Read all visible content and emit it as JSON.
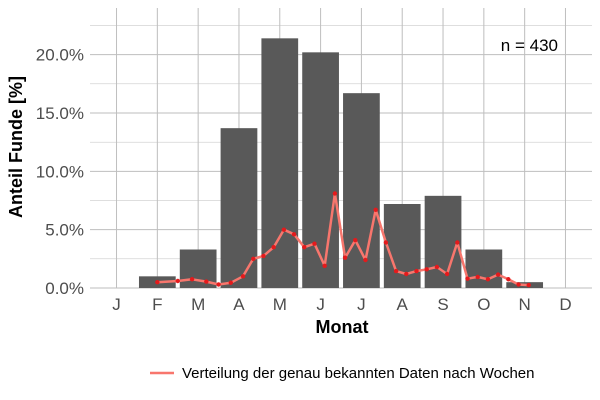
{
  "chart_data": {
    "type": "bar",
    "ylabel": "Anteil Funde [%]",
    "xlabel": "Monat",
    "categories": [
      "J",
      "F",
      "M",
      "A",
      "M",
      "J",
      "J",
      "A",
      "S",
      "O",
      "N",
      "D"
    ],
    "ylim": [
      0,
      24
    ],
    "yticks": [
      0,
      5,
      10,
      15,
      20
    ],
    "ytick_labels": [
      "0.0%",
      "5.0%",
      "10.0%",
      "15.0%",
      "20.0%"
    ],
    "annotation": "n = 430",
    "grid": true,
    "legend_position": "bottom",
    "series": [
      {
        "type": "bar",
        "values": [
          0,
          1.0,
          3.3,
          13.7,
          21.4,
          20.2,
          16.7,
          7.2,
          7.9,
          3.3,
          0.5,
          0
        ]
      },
      {
        "type": "line",
        "name": "Verteilung der genau bekannten Daten nach Wochen",
        "points": [
          [
            2.0,
            0.5
          ],
          [
            2.5,
            0.6
          ],
          [
            2.85,
            0.75
          ],
          [
            3.2,
            0.55
          ],
          [
            3.5,
            0.3
          ],
          [
            3.8,
            0.45
          ],
          [
            4.1,
            1.0
          ],
          [
            4.35,
            2.5
          ],
          [
            4.6,
            2.75
          ],
          [
            4.85,
            3.5
          ],
          [
            5.1,
            5.0
          ],
          [
            5.35,
            4.6
          ],
          [
            5.6,
            3.5
          ],
          [
            5.85,
            3.8
          ],
          [
            6.1,
            1.9
          ],
          [
            6.35,
            8.1
          ],
          [
            6.6,
            2.6
          ],
          [
            6.85,
            4.1
          ],
          [
            7.1,
            2.4
          ],
          [
            7.35,
            6.7
          ],
          [
            7.6,
            3.9
          ],
          [
            7.85,
            1.45
          ],
          [
            8.1,
            1.2
          ],
          [
            8.35,
            1.45
          ],
          [
            8.6,
            1.6
          ],
          [
            8.85,
            1.8
          ],
          [
            9.1,
            1.2
          ],
          [
            9.35,
            3.9
          ],
          [
            9.6,
            0.8
          ],
          [
            9.85,
            0.95
          ],
          [
            10.1,
            0.75
          ],
          [
            10.35,
            1.15
          ],
          [
            10.6,
            0.75
          ],
          [
            10.85,
            0.3
          ],
          [
            11.1,
            0.25
          ]
        ]
      }
    ],
    "colors": {
      "bar": "#595959",
      "line": "#f8766d",
      "point": "#e41a1c",
      "grid": "#bebebe"
    }
  }
}
